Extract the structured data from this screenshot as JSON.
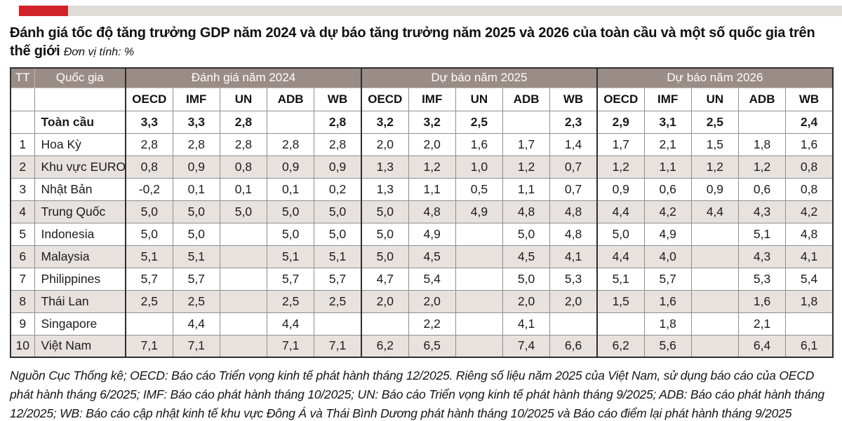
{
  "colors": {
    "red_bar": "#d2232a",
    "top_gray_bar": "#dfdcd8",
    "group_header_bg": "#9a8c86",
    "shaded_row_bg": "#e7e2de"
  },
  "title": {
    "text": "Đánh giá tốc độ tăng trưởng GDP năm 2024 và dự báo tăng trưởng năm 2025 và 2026 của toàn cầu và một số quốc gia trên thế giới",
    "unit": "Đơn vị tính: %"
  },
  "table": {
    "col_tt": "TT",
    "col_country": "Quốc gia",
    "groups": [
      {
        "label": "Đánh giá năm 2024"
      },
      {
        "label": "Dự báo năm 2025"
      },
      {
        "label": "Dự báo năm 2026"
      }
    ],
    "org_headers": [
      "OECD",
      "IMF",
      "UN",
      "ADB",
      "WB"
    ],
    "rows": [
      {
        "tt": "",
        "country": "Toàn cầu",
        "bold": true,
        "shaded": false,
        "values": [
          "3,3",
          "3,3",
          "2,8",
          "",
          "2,8",
          "3,2",
          "3,2",
          "2,5",
          "",
          "2,3",
          "2,9",
          "3,1",
          "2,5",
          "",
          "2,4"
        ]
      },
      {
        "tt": "1",
        "country": "Hoa Kỳ",
        "bold": false,
        "shaded": false,
        "values": [
          "2,8",
          "2,8",
          "2,8",
          "2,8",
          "2,8",
          "2,0",
          "2,0",
          "1,6",
          "1,7",
          "1,4",
          "1,7",
          "2,1",
          "1,5",
          "1,8",
          "1,6"
        ]
      },
      {
        "tt": "2",
        "country": "Khu vực EURO",
        "bold": false,
        "shaded": true,
        "values": [
          "0,8",
          "0,9",
          "0,8",
          "0,9",
          "0,9",
          "1,3",
          "1,2",
          "1,0",
          "1,2",
          "0,7",
          "1,2",
          "1,1",
          "1,2",
          "1,2",
          "0,8"
        ]
      },
      {
        "tt": "3",
        "country": "Nhật Bản",
        "bold": false,
        "shaded": false,
        "values": [
          "-0,2",
          "0,1",
          "0,1",
          "0,1",
          "0,2",
          "1,3",
          "1,1",
          "0,5",
          "1,1",
          "0,7",
          "0,9",
          "0,6",
          "0,9",
          "0,6",
          "0,8"
        ]
      },
      {
        "tt": "4",
        "country": "Trung Quốc",
        "bold": false,
        "shaded": true,
        "values": [
          "5,0",
          "5,0",
          "5,0",
          "5,0",
          "5,0",
          "5,0",
          "4,8",
          "4,9",
          "4,8",
          "4,8",
          "4,4",
          "4,2",
          "4,4",
          "4,3",
          "4,2"
        ]
      },
      {
        "tt": "5",
        "country": "Indonesia",
        "bold": false,
        "shaded": false,
        "values": [
          "5,0",
          "5,0",
          "",
          "5,0",
          "5,0",
          "5,0",
          "4,9",
          "",
          "5,0",
          "4,8",
          "5,0",
          "4,9",
          "",
          "5,1",
          "4,8"
        ]
      },
      {
        "tt": "6",
        "country": "Malaysia",
        "bold": false,
        "shaded": true,
        "values": [
          "5,1",
          "5,1",
          "",
          "5,1",
          "5,1",
          "5,0",
          "4,5",
          "",
          "4,5",
          "4,1",
          "4,4",
          "4,0",
          "",
          "4,3",
          "4,1"
        ]
      },
      {
        "tt": "7",
        "country": "Philippines",
        "bold": false,
        "shaded": false,
        "values": [
          "5,7",
          "5,7",
          "",
          "5,7",
          "5,7",
          "4,7",
          "5,4",
          "",
          "5,0",
          "5,3",
          "5,1",
          "5,7",
          "",
          "5,3",
          "5,4"
        ]
      },
      {
        "tt": "8",
        "country": "Thái Lan",
        "bold": false,
        "shaded": true,
        "values": [
          "2,5",
          "2,5",
          "",
          "2,5",
          "2,5",
          "2,0",
          "2,0",
          "",
          "2,0",
          "2,0",
          "1,5",
          "1,6",
          "",
          "1,6",
          "1,8"
        ]
      },
      {
        "tt": "9",
        "country": "Singapore",
        "bold": false,
        "shaded": false,
        "values": [
          "",
          "4,4",
          "",
          "4,4",
          "",
          "",
          "2,2",
          "",
          "4,1",
          "",
          "",
          "1,8",
          "",
          "2,1",
          ""
        ]
      },
      {
        "tt": "10",
        "country": "Việt Nam",
        "bold": false,
        "shaded": true,
        "values": [
          "7,1",
          "7,1",
          "",
          "7,1",
          "7,1",
          "6,2",
          "6,5",
          "",
          "7,4",
          "6,6",
          "6,2",
          "5,6",
          "",
          "6,4",
          "6,1"
        ]
      }
    ]
  },
  "source": "Nguồn Cục Thống kê; OECD: Báo cáo Triển vọng kinh tế phát hành tháng 12/2025. Riêng số liệu năm 2025 của Việt Nam, sử dụng báo cáo của OECD phát hành tháng 6/2025; IMF: Báo cáo phát hành tháng 10/2025; UN: Báo cáo Triển vọng kinh tế phát hành tháng 9/2025; ADB: Báo cáo phát hành tháng 12/2025; WB: Báo cáo cập nhật kinh tế khu vực Đông Á và Thái Bình Dương phát hành tháng 10/2025 và Báo cáo điểm lại phát hành tháng 9/2025"
}
